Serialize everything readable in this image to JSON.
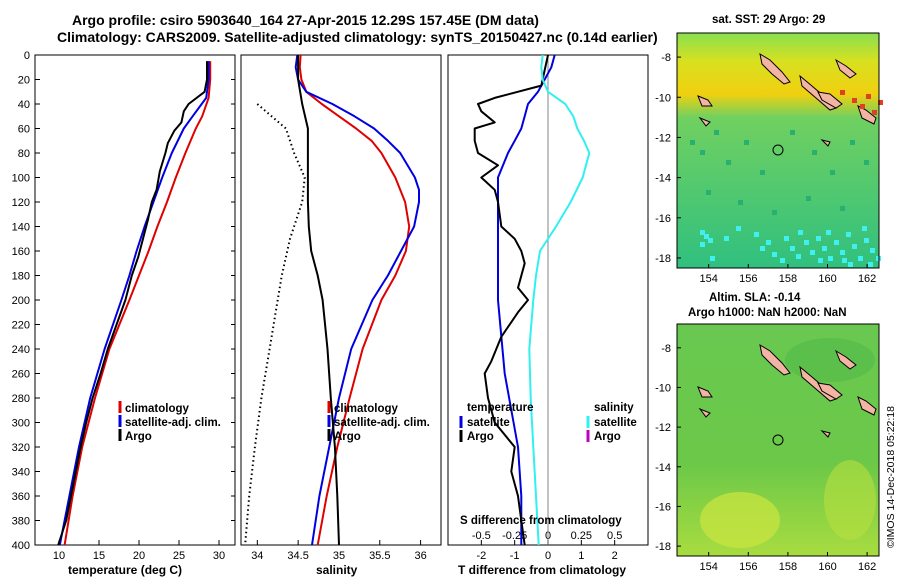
{
  "header": {
    "title_line1": "Argo profile: csiro 5903640_164 27-Apr-2015 12.29S 157.45E (DM data)",
    "title_line2": "Climatology: CARS2009. Satellite-adjusted climatology: synTS_20150427.nc (0.14d earlier)"
  },
  "colors": {
    "climatology": "#e00000",
    "satellite": "#0000e0",
    "argo": "#000000",
    "sat_salinity": "#30f0f0",
    "argo_salinity": "#c000c0",
    "land": "#f4b4a4"
  },
  "chart_data": [
    {
      "type": "line",
      "name": "temperature",
      "xlabel": "temperature (deg C)",
      "ylabel": "",
      "xlim": [
        7,
        32
      ],
      "ylim": [
        400,
        0
      ],
      "xticks": [
        10,
        15,
        20,
        25,
        30
      ],
      "xtick_labels": [
        "10",
        "15",
        "20",
        "25",
        "30"
      ],
      "yticks": [
        0,
        20,
        40,
        60,
        80,
        100,
        120,
        140,
        160,
        180,
        200,
        220,
        240,
        260,
        280,
        300,
        320,
        340,
        360,
        380,
        400
      ],
      "ytick_labels": [
        "0",
        "20",
        "40",
        "60",
        "80",
        "100",
        "120",
        "140",
        "160",
        "180",
        "200",
        "220",
        "240",
        "260",
        "280",
        "300",
        "320",
        "340",
        "360",
        "380",
        "400"
      ],
      "legend": [
        "climatology",
        "satellite-adj. clim.",
        "Argo"
      ],
      "series": [
        {
          "name": "climatology",
          "color": "#e00000",
          "depth": [
            5,
            20,
            35,
            50,
            60,
            80,
            100,
            120,
            140,
            160,
            180,
            200,
            240,
            280,
            320,
            360,
            400
          ],
          "values": [
            28.9,
            28.9,
            28.7,
            27.9,
            27.1,
            25.8,
            24.6,
            23.5,
            22.3,
            21.2,
            20.0,
            18.8,
            16.3,
            14.5,
            12.9,
            11.7,
            10.7
          ]
        },
        {
          "name": "satellite-adj. clim.",
          "color": "#0000e0",
          "depth": [
            5,
            20,
            35,
            50,
            60,
            80,
            100,
            120,
            140,
            160,
            180,
            200,
            240,
            280,
            320,
            360,
            400
          ],
          "values": [
            28.7,
            28.7,
            28.4,
            26.7,
            25.6,
            24.1,
            22.9,
            21.8,
            20.7,
            19.7,
            18.8,
            17.8,
            15.7,
            13.9,
            12.5,
            11.3,
            10.1
          ]
        },
        {
          "name": "Argo",
          "color": "#000000",
          "depth": [
            5,
            20,
            30,
            40,
            46,
            55,
            62,
            72,
            80,
            95,
            110,
            120,
            135,
            150,
            165,
            180,
            200,
            220,
            240,
            260,
            280,
            300,
            320,
            340,
            360,
            380,
            400
          ],
          "values": [
            28.5,
            28.5,
            28.2,
            26.2,
            25.6,
            25.3,
            24.4,
            23.6,
            23.3,
            22.6,
            22.2,
            21.6,
            21.1,
            20.5,
            19.9,
            19.1,
            18.3,
            17.2,
            16.1,
            15.2,
            14.2,
            13.4,
            12.7,
            12.1,
            11.5,
            10.9,
            9.9
          ]
        }
      ]
    },
    {
      "type": "line",
      "name": "salinity",
      "xlabel": "salinity",
      "xlim": [
        33.8,
        36.25
      ],
      "ylim": [
        400,
        0
      ],
      "xticks": [
        34,
        34.5,
        35,
        35.5,
        36
      ],
      "xtick_labels": [
        "34",
        "34.5",
        "35",
        "35.5",
        "36"
      ],
      "legend": [
        "climatology",
        "satellite-adj. clim.",
        "Argo"
      ],
      "series": [
        {
          "name": "climatology",
          "color": "#e00000",
          "depth": [
            0,
            10,
            20,
            30,
            40,
            50,
            60,
            70,
            80,
            100,
            120,
            140,
            160,
            180,
            200,
            240,
            280,
            320,
            360,
            400
          ],
          "values": [
            34.53,
            34.52,
            34.54,
            34.6,
            34.79,
            35.0,
            35.21,
            35.4,
            35.52,
            35.69,
            35.81,
            35.86,
            35.82,
            35.69,
            35.52,
            35.29,
            35.13,
            34.98,
            34.85,
            34.74
          ]
        },
        {
          "name": "satellite-adj. clim.",
          "color": "#0000e0",
          "depth": [
            0,
            10,
            20,
            30,
            40,
            50,
            60,
            70,
            80,
            100,
            110,
            120,
            140,
            160,
            180,
            200,
            240,
            280,
            320,
            360,
            400
          ],
          "values": [
            34.49,
            34.47,
            34.5,
            34.6,
            34.92,
            35.19,
            35.43,
            35.6,
            35.75,
            35.93,
            35.98,
            35.98,
            35.92,
            35.76,
            35.6,
            35.41,
            35.15,
            35.0,
            34.88,
            34.76,
            34.67
          ]
        },
        {
          "name": "Argo",
          "color": "#000000",
          "depth": [
            0,
            20,
            40,
            60,
            80,
            100,
            120,
            140,
            160,
            180,
            200,
            240,
            280,
            320,
            360,
            400
          ],
          "values": [
            34.5,
            34.5,
            34.55,
            34.62,
            34.62,
            34.62,
            34.62,
            34.63,
            34.66,
            34.74,
            34.8,
            34.86,
            34.9,
            34.95,
            34.98,
            35.0
          ]
        },
        {
          "name": "Argo-climatology",
          "color": "#000000",
          "style": "dotted",
          "depth": [
            40,
            60,
            80,
            100,
            120,
            150,
            180,
            200,
            240,
            280,
            320,
            360,
            400
          ],
          "values": [
            34.0,
            34.35,
            34.45,
            34.58,
            34.55,
            34.4,
            34.3,
            34.25,
            34.15,
            34.05,
            33.97,
            33.9,
            33.85
          ]
        }
      ]
    },
    {
      "type": "line",
      "name": "difference from climatology",
      "xlabel": "T difference from climatology",
      "x2label": "S difference from climatology",
      "xlim": [
        -3,
        3
      ],
      "ylim": [
        400,
        0
      ],
      "xticks": [
        -2,
        -1,
        0,
        1,
        2
      ],
      "xtick_labels": [
        "-2",
        "-1",
        "0",
        "1",
        "2"
      ],
      "x2ticks": [
        -0.5,
        -0.25,
        0,
        0.25,
        0.5
      ],
      "x2tick_labels": [
        "-0.5",
        "-0.25",
        "0",
        "0.25",
        "0.5"
      ],
      "legend_left_title": "temperature",
      "legend_right_title": "salinity",
      "legend_left": [
        "satellite",
        "Argo"
      ],
      "legend_right": [
        "satellite",
        "Argo"
      ],
      "series": [
        {
          "name": "T satellite",
          "color": "#0000e0",
          "depth": [
            0,
            10,
            20,
            30,
            40,
            50,
            60,
            70,
            80,
            100,
            140,
            200,
            260,
            320,
            360,
            400
          ],
          "values": [
            0.2,
            0.1,
            -0.1,
            -0.3,
            -0.6,
            -0.7,
            -0.8,
            -1.0,
            -1.2,
            -1.5,
            -1.5,
            -1.5,
            -1.3,
            -0.9,
            -0.8,
            -0.8
          ]
        },
        {
          "name": "T Argo",
          "color": "#000000",
          "depth": [
            0,
            25,
            35,
            40,
            46,
            55,
            60,
            70,
            80,
            90,
            100,
            110,
            120,
            140,
            150,
            160,
            170,
            190,
            200,
            210,
            230,
            250,
            260,
            280,
            300,
            320,
            340,
            360,
            380,
            400
          ],
          "values": [
            0.0,
            -0.2,
            -1.6,
            -2.1,
            -2.0,
            -1.6,
            -2.2,
            -2.2,
            -2.1,
            -1.5,
            -2.0,
            -1.6,
            -1.5,
            -1.4,
            -1.0,
            -0.8,
            -0.7,
            -0.9,
            -0.6,
            -0.9,
            -1.4,
            -1.7,
            -1.9,
            -1.8,
            -1.6,
            -1.0,
            -1.1,
            -0.9,
            -0.8,
            -0.7
          ]
        },
        {
          "name": "S satellite",
          "color": "#30f0f0",
          "depth": [
            0,
            10,
            20,
            30,
            40,
            50,
            60,
            70,
            80,
            100,
            120,
            140,
            160,
            180,
            200,
            240,
            280,
            320,
            360,
            400
          ],
          "values": [
            -0.04,
            -0.05,
            -0.04,
            0.0,
            0.13,
            0.19,
            0.22,
            0.27,
            0.31,
            0.26,
            0.17,
            0.06,
            -0.06,
            -0.09,
            -0.11,
            -0.14,
            -0.13,
            -0.11,
            -0.09,
            -0.07
          ]
        }
      ]
    }
  ],
  "maps": {
    "sst": {
      "title": "sat. SST: 29 Argo: 29",
      "yticks": [
        "-8",
        "-10",
        "-12",
        "-14",
        "-16",
        "-18"
      ],
      "xticks": [
        "154",
        "156",
        "158",
        "160",
        "162"
      ]
    },
    "sla": {
      "title1": "Altim. SLA: -0.14",
      "title2": "Argo h1000: NaN h2000: NaN",
      "yticks": [
        "-8",
        "-10",
        "-12",
        "-14",
        "-16",
        "-18"
      ],
      "xticks": [
        "154",
        "156",
        "158",
        "160",
        "162"
      ]
    },
    "argo_position": {
      "lon": 157.45,
      "lat": -12.29
    },
    "lon_range": [
      152.4,
      162.6
    ],
    "lat_range": [
      -18.5,
      -6.8
    ]
  },
  "footer": {
    "stamp": "©IMOS 14-Dec-2018 05:22:18"
  }
}
